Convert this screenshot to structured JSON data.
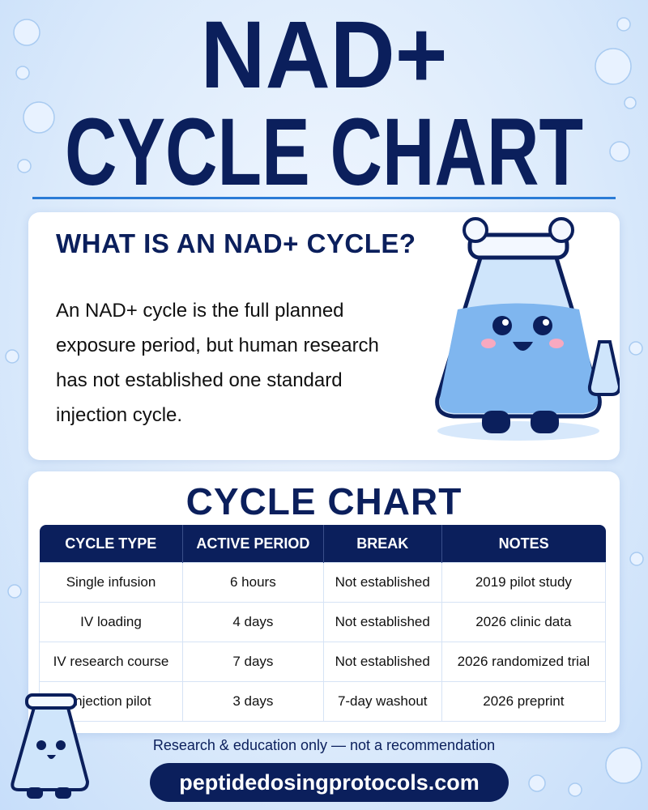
{
  "header": {
    "title_lines": [
      "NAD+",
      "CYCLE CHART"
    ]
  },
  "intro": {
    "heading": "WHAT IS AN NAD+ CYCLE?",
    "text": "An NAD+ cycle is the full planned exposure period, but human research has not established one standard injection cycle."
  },
  "table": {
    "title": "CYCLE CHART",
    "columns": [
      "CYCLE TYPE",
      "ACTIVE PERIOD",
      "BREAK",
      "NOTES"
    ],
    "rows": [
      [
        "Single infusion",
        "6 hours",
        "Not established",
        "2019 pilot study"
      ],
      [
        "IV loading",
        "4 days",
        "Not established",
        "2026 clinic data"
      ],
      [
        "IV research course",
        "7 days",
        "Not established",
        "2026 randomized trial"
      ],
      [
        "Injection pilot",
        "3 days",
        "7-day washout",
        "2026 preprint"
      ]
    ]
  },
  "footer": {
    "disclaimer": "Research & education only — not a recommendation",
    "url": "peptidedosingprotocols.com"
  }
}
